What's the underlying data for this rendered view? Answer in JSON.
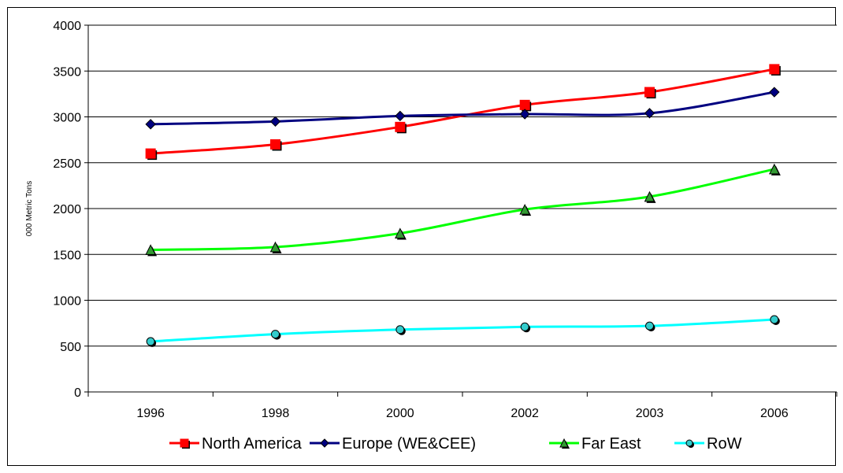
{
  "chart_data": {
    "type": "line",
    "title": "",
    "xlabel": "",
    "ylabel": "000 Metric Tons",
    "categories": [
      "1996",
      "1998",
      "2000",
      "2002",
      "2003",
      "2006"
    ],
    "ylim": [
      0,
      4000
    ],
    "yticks": [
      0,
      500,
      1000,
      1500,
      2000,
      2500,
      3000,
      3500,
      4000
    ],
    "grid": true,
    "legend_position": "bottom",
    "series": [
      {
        "name": "North America",
        "color": "#ff0000",
        "marker": "square",
        "values": [
          2600,
          2700,
          2890,
          3130,
          3270,
          3520
        ]
      },
      {
        "name": "Europe (WE&CEE)",
        "color": "#000080",
        "marker": "diamond",
        "values": [
          2920,
          2950,
          3010,
          3030,
          3040,
          3270
        ]
      },
      {
        "name": "Far East",
        "color": "#00ff00",
        "marker": "triangle",
        "values": [
          1550,
          1580,
          1730,
          1990,
          2130,
          2430
        ]
      },
      {
        "name": "RoW",
        "color": "#00ffff",
        "marker": "circle",
        "values": [
          550,
          630,
          680,
          710,
          720,
          790
        ]
      }
    ]
  }
}
